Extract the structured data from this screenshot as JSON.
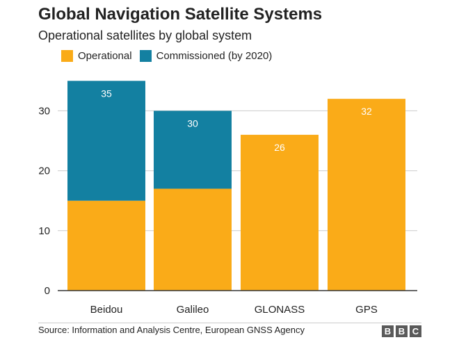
{
  "header": {
    "title": "Global Navigation Satellite Systems",
    "subtitle": "Operational satellites by global system"
  },
  "legend": {
    "items": [
      {
        "label": "Operational",
        "color": "#FAAB18"
      },
      {
        "label": "Commissioned (by 2020)",
        "color": "#1380A1"
      }
    ]
  },
  "chart_data": {
    "type": "bar",
    "stacked": true,
    "title": "Global Navigation Satellite Systems",
    "subtitle": "Operational satellites by global system",
    "categories": [
      "Beidou",
      "Galileo",
      "GLONASS",
      "GPS"
    ],
    "series": [
      {
        "name": "Operational",
        "color": "#FAAB18",
        "values": [
          15,
          17,
          26,
          32
        ]
      },
      {
        "name": "Commissioned (by 2020)",
        "color": "#1380A1",
        "values": [
          20,
          13,
          0,
          0
        ]
      }
    ],
    "totals": [
      35,
      30,
      26,
      32
    ],
    "total_labels": [
      "35",
      "30",
      "26",
      "32"
    ],
    "y_ticks": [
      0,
      10,
      20,
      30
    ],
    "y_tick_labels": [
      "0",
      "10",
      "20",
      "30"
    ],
    "ylim": [
      0,
      37
    ],
    "xlabel": "",
    "ylabel": "",
    "grid": true,
    "legend_position": "top-left"
  },
  "footer": {
    "source": "Source: Information and Analysis Centre, European GNSS Agency",
    "logo": [
      "B",
      "B",
      "C"
    ]
  }
}
